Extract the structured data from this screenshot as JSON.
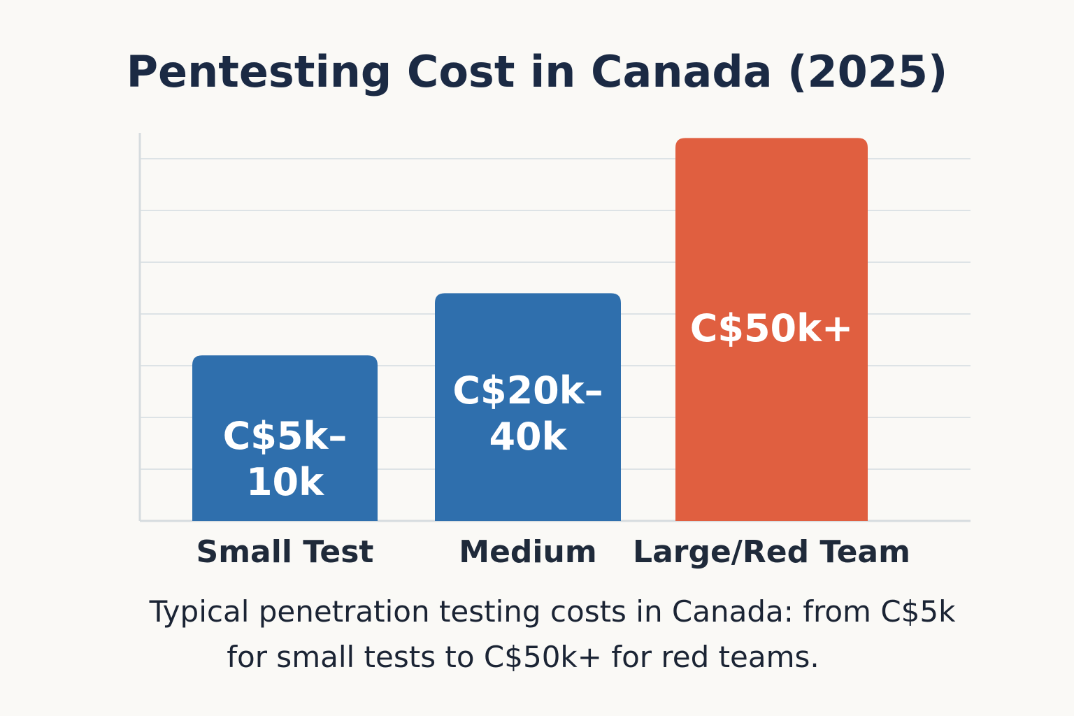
{
  "title": "Pentesting Cost in Canada (2025)",
  "chart_data": {
    "type": "bar",
    "title": "Pentesting Cost in Canada (2025)",
    "categories": [
      "Small Test",
      "Medium",
      "Large/Red Team"
    ],
    "values": [
      3.2,
      4.4,
      7.4
    ],
    "data_labels": [
      [
        "C$5k–",
        "10k"
      ],
      [
        "C$20k–",
        "40k"
      ],
      [
        "C$50k+"
      ]
    ],
    "colors": [
      "#2f6fad",
      "#2f6fad",
      "#e05f40"
    ],
    "xlabel": "",
    "ylabel": "",
    "ylim": [
      0,
      7.5
    ],
    "grid": true,
    "y_tick_labels_shown": false
  },
  "caption": {
    "line1": "Typical penetration testing costs in Canada: from C$5k",
    "line2": "for small tests to C$50k+ for red teams."
  }
}
